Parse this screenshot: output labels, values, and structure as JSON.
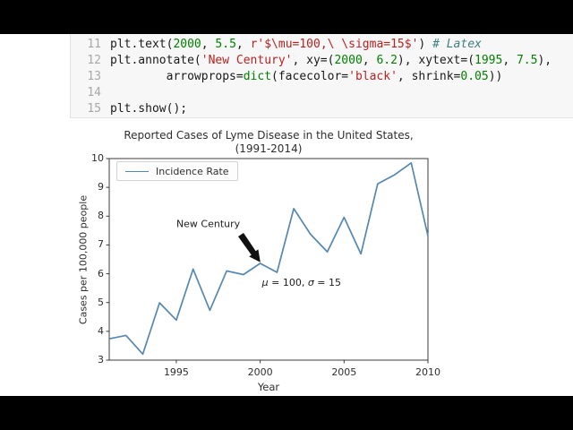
{
  "code_cell": {
    "lines": [
      {
        "no": "11",
        "segments": [
          {
            "t": "plt.text(",
            "c": "pl"
          },
          {
            "t": "2000",
            "c": "nu"
          },
          {
            "t": ", ",
            "c": "pl"
          },
          {
            "t": "5.5",
            "c": "nu"
          },
          {
            "t": ", ",
            "c": "pl"
          },
          {
            "t": "r'$\\mu=100,\\ \\sigma=15$'",
            "c": "st"
          },
          {
            "t": ") ",
            "c": "pl"
          },
          {
            "t": "# Latex",
            "c": "co"
          }
        ]
      },
      {
        "no": "12",
        "segments": [
          {
            "t": "plt.annotate(",
            "c": "pl"
          },
          {
            "t": "'New Century'",
            "c": "st"
          },
          {
            "t": ", xy=(",
            "c": "pl"
          },
          {
            "t": "2000",
            "c": "nu"
          },
          {
            "t": ", ",
            "c": "pl"
          },
          {
            "t": "6.2",
            "c": "nu"
          },
          {
            "t": "), xytext=(",
            "c": "pl"
          },
          {
            "t": "1995",
            "c": "nu"
          },
          {
            "t": ", ",
            "c": "pl"
          },
          {
            "t": "7.5",
            "c": "nu"
          },
          {
            "t": "),",
            "c": "pl"
          }
        ]
      },
      {
        "no": "13",
        "segments": [
          {
            "t": "        arrowprops=",
            "c": "pl"
          },
          {
            "t": "dict",
            "c": "bi"
          },
          {
            "t": "(facecolor=",
            "c": "pl"
          },
          {
            "t": "'black'",
            "c": "st"
          },
          {
            "t": ", shrink=",
            "c": "pl"
          },
          {
            "t": "0.05",
            "c": "nu"
          },
          {
            "t": "))",
            "c": "pl"
          }
        ]
      },
      {
        "no": "14",
        "segments": []
      },
      {
        "no": "15",
        "segments": [
          {
            "t": "plt.show();",
            "c": "pl"
          }
        ]
      }
    ]
  },
  "chart": {
    "title_line1": "Reported Cases of Lyme Disease in the United States,",
    "title_line2": "(1991-2014)",
    "line_color": "#5588b0",
    "spine_color": "#3b3b3b",
    "annotation_text": "New Century",
    "math_annotation_parts": [
      {
        "t": "μ",
        "italic": true
      },
      {
        "t": " = 100,  ",
        "italic": false
      },
      {
        "t": "σ",
        "italic": true
      },
      {
        "t": " = 15",
        "italic": false
      }
    ]
  },
  "chart_data": {
    "type": "line",
    "title": "Reported Cases of Lyme Disease in the United States, (1991-2014)",
    "xlabel": "Year",
    "ylabel": "Cases per 100,000 people",
    "x": [
      1991,
      1992,
      1993,
      1994,
      1995,
      1996,
      1997,
      1998,
      1999,
      2000,
      2001,
      2002,
      2003,
      2004,
      2005,
      2006,
      2007,
      2008,
      2009,
      2010
    ],
    "series": [
      {
        "name": "Incidence Rate",
        "values": [
          3.74,
          3.86,
          3.21,
          4.99,
          4.39,
          6.16,
          4.73,
          6.1,
          5.97,
          6.36,
          6.05,
          8.26,
          7.37,
          6.76,
          7.96,
          6.69,
          9.12,
          9.43,
          9.85,
          7.31
        ]
      }
    ],
    "xlim": [
      1991,
      2010
    ],
    "ylim": [
      3,
      10
    ],
    "xticks": [
      1995,
      2000,
      2005,
      2010
    ],
    "yticks": [
      3,
      4,
      5,
      6,
      7,
      8,
      9,
      10
    ],
    "grid": false,
    "legend_position": "upper left",
    "annotations": [
      {
        "text": "New Century",
        "xy": [
          2000,
          6.2
        ],
        "xytext": [
          1995,
          7.5
        ]
      },
      {
        "text": "μ=100, σ=15",
        "xy": [
          2000,
          5.5
        ]
      }
    ]
  }
}
